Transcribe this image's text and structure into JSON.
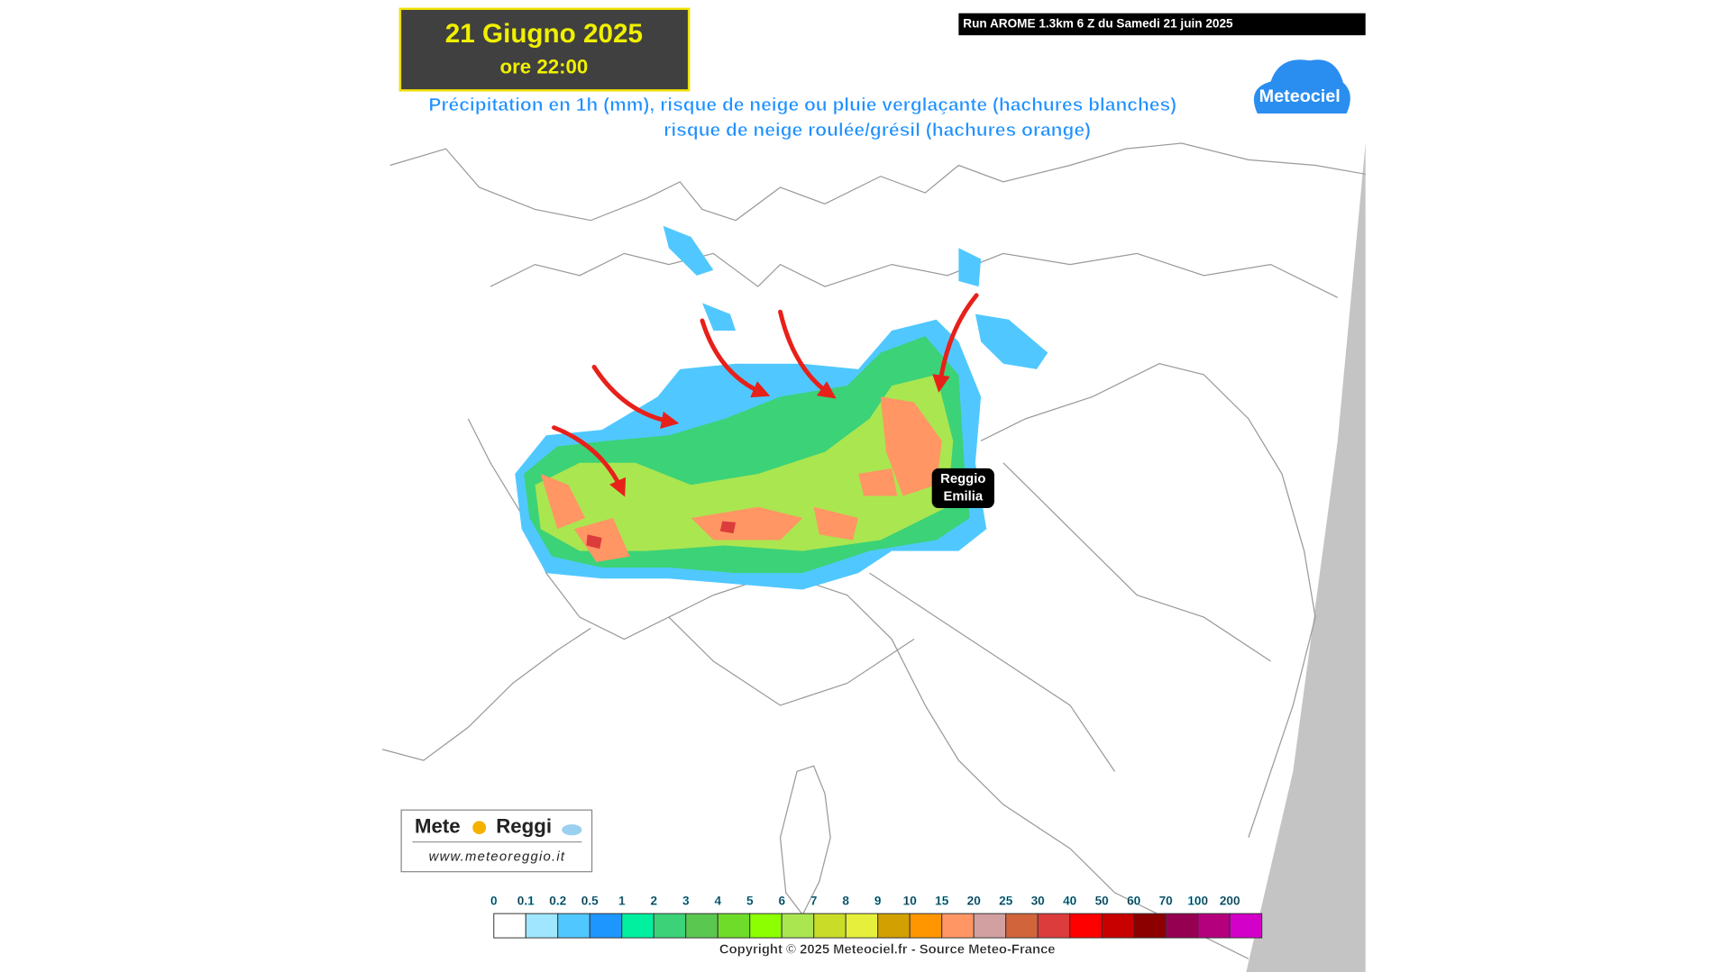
{
  "header": {
    "title": "21 Giugno 2025",
    "subtitle": "ore 22:00"
  },
  "run_info": "Run AROME 1.3km 6 Z du Samedi 21 juin 2025",
  "map_title": [
    "Précipitation en 1h (mm), risque de neige ou pluie verglaçante (hachures blanches)",
    "risque de neige roulée/grésil (hachures orange)"
  ],
  "brand": "Meteociel",
  "city_label": [
    "Reggio",
    "Emilia"
  ],
  "logo": {
    "name_left": "Mete",
    "name_right": "Reggi",
    "url": "www.meteoreggio.it"
  },
  "legend": {
    "items": [
      {
        "label": "0",
        "color": "#ffffff"
      },
      {
        "label": "0.1",
        "color": "#a0e6ff"
      },
      {
        "label": "0.2",
        "color": "#50c8ff"
      },
      {
        "label": "0.5",
        "color": "#1e96ff"
      },
      {
        "label": "1",
        "color": "#00f0a0"
      },
      {
        "label": "2",
        "color": "#3cd278"
      },
      {
        "label": "3",
        "color": "#5ac850"
      },
      {
        "label": "4",
        "color": "#6edc28"
      },
      {
        "label": "5",
        "color": "#8cff00"
      },
      {
        "label": "6",
        "color": "#aae650"
      },
      {
        "label": "7",
        "color": "#c8dc28"
      },
      {
        "label": "8",
        "color": "#e6f03c"
      },
      {
        "label": "9",
        "color": "#d2a000"
      },
      {
        "label": "10",
        "color": "#ff9600"
      },
      {
        "label": "15",
        "color": "#ff9664"
      },
      {
        "label": "20",
        "color": "#d2a0a0"
      },
      {
        "label": "25",
        "color": "#d2643c"
      },
      {
        "label": "30",
        "color": "#dc3c3c"
      },
      {
        "label": "40",
        "color": "#ff0000"
      },
      {
        "label": "50",
        "color": "#c80000"
      },
      {
        "label": "60",
        "color": "#8c0000"
      },
      {
        "label": "70",
        "color": "#960050"
      },
      {
        "label": "100",
        "color": "#b4007d"
      },
      {
        "label": "200",
        "color": "#d200c8"
      }
    ]
  },
  "copyright": "Copyright © 2025 Meteociel.fr - Source Meteo-France"
}
